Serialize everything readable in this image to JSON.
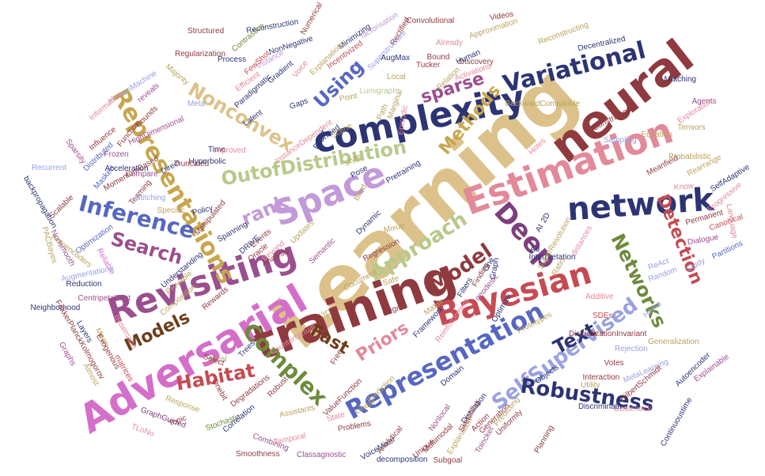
{
  "palette": {
    "maroon": "#8f3a3f",
    "navy": "#2c3474",
    "sand": "#dcc28a",
    "pink": "#e28a9a",
    "purple": "#9b4f8f",
    "olive": "#6e8a3c",
    "blue": "#5767c1",
    "brown": "#6d3d1c",
    "gold": "#c8a64e",
    "orchid": "#d46fc9",
    "sage": "#b8c98b",
    "lilac": "#c39ad9",
    "periwinkle": "#9aa1e0",
    "red": "#c54b52",
    "khaki": "#b9a35f",
    "violet": "#7d3f7d",
    "green": "#6d8a3b"
  },
  "words": [
    {
      "text": "Learning",
      "color": "sand"
    },
    {
      "text": "neural",
      "color": "maroon"
    },
    {
      "text": "training",
      "color": "maroon"
    },
    {
      "text": "complexity",
      "color": "navy"
    },
    {
      "text": "Estimation",
      "color": "pink"
    },
    {
      "text": "Adversarial",
      "color": "orchid"
    },
    {
      "text": "Space",
      "color": "lilac"
    },
    {
      "text": "Revisiting",
      "color": "purple"
    },
    {
      "text": "Representations",
      "color": "gold"
    },
    {
      "text": "Representation",
      "color": "blue"
    },
    {
      "text": "Bayesian",
      "color": "red"
    },
    {
      "text": "network",
      "color": "navy"
    },
    {
      "text": "Variational",
      "color": "navy"
    },
    {
      "text": "SelfSupervised",
      "color": "periwinkle"
    },
    {
      "text": "Robustness",
      "color": "navy"
    },
    {
      "text": "Deep",
      "color": "violet"
    },
    {
      "text": "OutofDistribution",
      "color": "sage"
    },
    {
      "text": "Nonconvex",
      "color": "sand"
    },
    {
      "text": "Inference",
      "color": "blue"
    },
    {
      "text": "Approach",
      "color": "sage"
    },
    {
      "text": "Networks",
      "color": "olive"
    },
    {
      "text": "Detection",
      "color": "red"
    },
    {
      "text": "Methods",
      "color": "gold"
    },
    {
      "text": "Complex",
      "color": "olive"
    },
    {
      "text": "Model",
      "color": "maroon"
    },
    {
      "text": "Priors",
      "color": "pink"
    },
    {
      "text": "Text",
      "color": "navy"
    },
    {
      "text": "Habitat",
      "color": "red"
    },
    {
      "text": "Search",
      "color": "purple"
    },
    {
      "text": "Models",
      "color": "brown"
    },
    {
      "text": "sparse",
      "color": "purple"
    },
    {
      "text": "Using",
      "color": "blue"
    },
    {
      "text": "rank",
      "color": "lilac"
    },
    {
      "text": "Fast",
      "color": "brown"
    },
    {
      "text": "Reconstruction",
      "color": "navy"
    },
    {
      "text": "NonNegative",
      "color": "navy"
    },
    {
      "text": "Structured",
      "color": "maroon"
    },
    {
      "text": "Regularization",
      "color": "maroon"
    },
    {
      "text": "Process",
      "color": "navy"
    },
    {
      "text": "Contrastive",
      "color": "olive"
    },
    {
      "text": "Instance",
      "color": "lilac"
    },
    {
      "text": "Gradient",
      "color": "navy"
    },
    {
      "text": "Efficient",
      "color": "pink"
    },
    {
      "text": "FewShot",
      "color": "red"
    },
    {
      "text": "Paradigmatic",
      "color": "navy"
    },
    {
      "text": "Majority",
      "color": "khaki"
    },
    {
      "text": "HumanMachine",
      "color": "periwinkle"
    },
    {
      "text": "reveals",
      "color": "purple"
    },
    {
      "text": "Information",
      "color": "pink"
    },
    {
      "text": "Influence",
      "color": "maroon"
    },
    {
      "text": "Distributed",
      "color": "blue"
    },
    {
      "text": "Sparsity",
      "color": "purple"
    },
    {
      "text": "Masked",
      "color": "blue"
    },
    {
      "text": "Recurrent",
      "color": "periwinkle"
    },
    {
      "text": "Scalable",
      "color": "maroon"
    },
    {
      "text": "backpropagation",
      "color": "navy"
    },
    {
      "text": "Optimization",
      "color": "blue"
    },
    {
      "text": "Nonsmooth",
      "color": "purple"
    },
    {
      "text": "Autoencoders",
      "color": "khaki"
    },
    {
      "text": "PACBayes",
      "color": "khaki"
    },
    {
      "text": "Reliable",
      "color": "orchid"
    },
    {
      "text": "Augmentations",
      "color": "periwinkle"
    },
    {
      "text": "Reduction",
      "color": "navy"
    },
    {
      "text": "Neighborhood",
      "color": "navy"
    },
    {
      "text": "CentripetalText",
      "color": "purple"
    },
    {
      "text": "FokkerPlanckKolmogorov",
      "color": "maroon"
    },
    {
      "text": "Graphs",
      "color": "purple"
    },
    {
      "text": "Layers",
      "color": "navy"
    },
    {
      "text": "Mean",
      "color": "khaki"
    },
    {
      "text": "Busemann",
      "color": "pink"
    },
    {
      "text": "Exogenous",
      "color": "maroon"
    },
    {
      "text": "matrices",
      "color": "red"
    },
    {
      "text": "Almost",
      "color": "khaki"
    },
    {
      "text": "TLoNo",
      "color": "pink"
    },
    {
      "text": "GraphGuided",
      "color": "violet"
    },
    {
      "text": "Response",
      "color": "khaki"
    },
    {
      "text": "Topic",
      "color": "maroon"
    },
    {
      "text": "Stochastic",
      "color": "olive"
    },
    {
      "text": "Onebit",
      "color": "maroon"
    },
    {
      "text": "Smoothness",
      "color": "maroon"
    },
    {
      "text": "Combining",
      "color": "purple"
    },
    {
      "text": "Classagnostic",
      "color": "purple"
    },
    {
      "text": "decomposition",
      "color": "navy"
    },
    {
      "text": "VoiceMixer",
      "color": "navy"
    },
    {
      "text": "Unique",
      "color": "maroon"
    },
    {
      "text": "Subgoal",
      "color": "maroon"
    },
    {
      "text": "Assistants",
      "color": "khaki"
    },
    {
      "text": "Problems",
      "color": "maroon"
    },
    {
      "text": "Analytical",
      "color": "maroon"
    },
    {
      "text": "Temporal",
      "color": "pink"
    },
    {
      "text": "Correlation",
      "color": "navy"
    },
    {
      "text": "Degradations",
      "color": "maroon"
    },
    {
      "text": "Robust",
      "color": "maroon"
    },
    {
      "text": "ValueFunction",
      "color": "maroon"
    },
    {
      "text": "Prediction",
      "color": "khaki"
    },
    {
      "text": "Linear",
      "color": "khaki"
    },
    {
      "text": "State",
      "color": "pink"
    },
    {
      "text": "Nonlocal",
      "color": "purple"
    },
    {
      "text": "Multimodal",
      "color": "maroon"
    },
    {
      "text": "Explanation",
      "color": "khaki"
    },
    {
      "text": "Toincket",
      "color": "purple"
    },
    {
      "text": "Generation",
      "color": "maroon"
    },
    {
      "text": "Predicting",
      "color": "khaki"
    },
    {
      "text": "Planning",
      "color": "maroon"
    },
    {
      "text": "Bottleneck",
      "color": "pink"
    },
    {
      "text": "Continuoustime",
      "color": "navy"
    },
    {
      "text": "Explainable",
      "color": "purple"
    },
    {
      "text": "Autoencoder",
      "color": "navy"
    },
    {
      "text": "Generalization",
      "color": "khaki"
    },
    {
      "text": "HilbertSchmidt",
      "color": "maroon"
    },
    {
      "text": "MetaLearning",
      "color": "periwinkle"
    },
    {
      "text": "DiscretizationInvariant",
      "color": "maroon"
    },
    {
      "text": "Rejection",
      "color": "periwinkle"
    },
    {
      "text": "Interaction",
      "color": "maroon"
    },
    {
      "text": "Utility",
      "color": "khaki"
    },
    {
      "text": "Objects",
      "color": "navy"
    },
    {
      "text": "Discriminative",
      "color": "navy"
    },
    {
      "text": "Votes",
      "color": "maroon"
    },
    {
      "text": "SDEs",
      "color": "red"
    },
    {
      "text": "Prototypes",
      "color": "khaki"
    },
    {
      "text": "Additive",
      "color": "pink"
    },
    {
      "text": "Home",
      "color": "periwinkle"
    },
    {
      "text": "Random",
      "color": "periwinkle"
    },
    {
      "text": "ReAct",
      "color": "periwinkle"
    },
    {
      "text": "Study",
      "color": "periwinkle"
    },
    {
      "text": "Partitions",
      "color": "blue"
    },
    {
      "text": "Dialogue",
      "color": "purple"
    },
    {
      "text": "Permanent",
      "color": "maroon"
    },
    {
      "text": "Canonical",
      "color": "red"
    },
    {
      "text": "Language",
      "color": "pink"
    },
    {
      "text": "Progressive",
      "color": "pink"
    },
    {
      "text": "Know",
      "color": "pink"
    },
    {
      "text": "Rearrange",
      "color": "khaki"
    },
    {
      "text": "SelfAdaptive",
      "color": "navy"
    },
    {
      "text": "Meanfield",
      "color": "maroon"
    },
    {
      "text": "Probabilistic",
      "color": "khaki"
    },
    {
      "text": "Constrained",
      "color": "maroon"
    },
    {
      "text": "Sampling",
      "color": "periwinkle"
    },
    {
      "text": "Agents",
      "color": "purple"
    },
    {
      "text": "Exploration",
      "color": "pink"
    },
    {
      "text": "Tensors",
      "color": "khaki"
    },
    {
      "text": "Equation",
      "color": "khaki"
    },
    {
      "text": "Matching",
      "color": "navy"
    },
    {
      "text": "Decentralized",
      "color": "navy"
    },
    {
      "text": "Reconstructing",
      "color": "khaki"
    },
    {
      "text": "Approximation",
      "color": "khaki"
    },
    {
      "text": "Videos",
      "color": "maroon"
    },
    {
      "text": "Convolutional",
      "color": "maroon"
    },
    {
      "text": "Discovery",
      "color": "maroon"
    },
    {
      "text": "Already",
      "color": "pink"
    },
    {
      "text": "Bound",
      "color": "maroon"
    },
    {
      "text": "Tucker",
      "color": "maroon"
    },
    {
      "text": "Relation",
      "color": "khaki"
    },
    {
      "text": "Human",
      "color": "navy"
    },
    {
      "text": "Activations",
      "color": "pink"
    },
    {
      "text": "BackwardCompatible",
      "color": "khaki"
    },
    {
      "text": "Holes",
      "color": "pink"
    },
    {
      "text": "Rectified",
      "color": "maroon"
    },
    {
      "text": "factorisation",
      "color": "lilac"
    },
    {
      "text": "Numerical",
      "color": "maroon"
    },
    {
      "text": "Minimizing",
      "color": "navy"
    },
    {
      "text": "Incentivized",
      "color": "red"
    },
    {
      "text": "Superstructure",
      "color": "periwinkle"
    },
    {
      "text": "AugMax",
      "color": "navy"
    },
    {
      "text": "Local",
      "color": "khaki"
    },
    {
      "text": "Explanations",
      "color": "khaki"
    },
    {
      "text": "Voice",
      "color": "pink"
    },
    {
      "text": "Point",
      "color": "khaki"
    },
    {
      "text": "Lumigraph",
      "color": "sage"
    },
    {
      "text": "Path",
      "color": "khaki"
    },
    {
      "text": "Marginal",
      "color": "khaki"
    },
    {
      "text": "Episodic",
      "color": "pink"
    },
    {
      "text": "Bounds",
      "color": "maroon"
    },
    {
      "text": "Meta",
      "color": "periwinkle"
    },
    {
      "text": "HighDimensional",
      "color": "purple"
    },
    {
      "text": "Function",
      "color": "maroon"
    },
    {
      "text": "Frozen",
      "color": "purple"
    },
    {
      "text": "Acceleration",
      "color": "navy"
    },
    {
      "text": "Compare",
      "color": "purple"
    },
    {
      "text": "MomentumBased",
      "color": "maroon"
    },
    {
      "text": "Teaming",
      "color": "maroon"
    },
    {
      "text": "Stitching",
      "color": "periwinkle"
    },
    {
      "text": "Direct",
      "color": "navy"
    },
    {
      "text": "Truncated",
      "color": "maroon"
    },
    {
      "text": "Hyperbolic",
      "color": "navy"
    },
    {
      "text": "Latent",
      "color": "navy"
    },
    {
      "text": "Gaps",
      "color": "navy"
    },
    {
      "text": "InstanceDependent",
      "color": "pink"
    },
    {
      "text": "BAST",
      "color": "navy"
    },
    {
      "text": "Scene",
      "color": "khaki"
    },
    {
      "text": "Unified",
      "color": "navy"
    },
    {
      "text": "Time",
      "color": "navy"
    },
    {
      "text": "Improved",
      "color": "pink"
    },
    {
      "text": "Style",
      "color": "khaki"
    },
    {
      "text": "Pretraining",
      "color": "navy"
    },
    {
      "text": "Pose",
      "color": "navy"
    },
    {
      "text": "Blind",
      "color": "khaki"
    },
    {
      "text": "Specific",
      "color": "khaki"
    },
    {
      "text": "Policy",
      "color": "navy"
    },
    {
      "text": "Manipulated",
      "color": "maroon"
    },
    {
      "text": "Spanning",
      "color": "navy"
    },
    {
      "text": "Events",
      "color": "maroon"
    },
    {
      "text": "DRIVE",
      "color": "navy"
    },
    {
      "text": "Beyond",
      "color": "pink"
    },
    {
      "text": "Updates",
      "color": "khaki"
    },
    {
      "text": "Semantic",
      "color": "purple"
    },
    {
      "text": "Dynamic",
      "color": "navy"
    },
    {
      "text": "Mixup",
      "color": "khaki"
    },
    {
      "text": "Regression",
      "color": "maroon"
    },
    {
      "text": "Safe",
      "color": "khaki"
    },
    {
      "text": "Document",
      "color": "khaki"
    },
    {
      "text": "Analysis",
      "color": "maroon"
    },
    {
      "text": "Oracle",
      "color": "maroon"
    },
    {
      "text": "Understanding",
      "color": "navy"
    },
    {
      "text": "Provable",
      "color": "khaki"
    },
    {
      "text": "Rewards",
      "color": "maroon"
    },
    {
      "text": "Composition",
      "color": "khaki"
    },
    {
      "text": "Regret",
      "color": "maroon"
    },
    {
      "text": "Framework",
      "color": "navy"
    },
    {
      "text": "Matrix",
      "color": "khaki"
    },
    {
      "text": "Reinforcement",
      "color": "pink"
    },
    {
      "text": "Free",
      "color": "maroon"
    },
    {
      "text": "Ideal",
      "color": "khaki"
    },
    {
      "text": "Trees",
      "color": "navy"
    },
    {
      "text": "Counterfactual",
      "color": "pink"
    },
    {
      "text": "Domain",
      "color": "navy"
    },
    {
      "text": "Filters",
      "color": "navy"
    },
    {
      "text": "Graph",
      "color": "navy"
    },
    {
      "text": "geodesic",
      "color": "purple"
    },
    {
      "text": "Optimize",
      "color": "navy"
    },
    {
      "text": "Ratio",
      "color": "khaki"
    },
    {
      "text": "Interpretation",
      "color": "navy"
    },
    {
      "text": "SuperResolution",
      "color": "khaki"
    },
    {
      "text": "distances",
      "color": "pink"
    },
    {
      "text": "Ad",
      "color": "navy"
    },
    {
      "text": "One",
      "color": "navy"
    },
    {
      "text": "Finding",
      "color": "maroon"
    },
    {
      "text": "2D",
      "color": "navy"
    },
    {
      "text": "AI",
      "color": "navy"
    },
    {
      "text": "3D",
      "color": "khaki"
    },
    {
      "text": "Select",
      "color": "maroon"
    },
    {
      "text": "Distillation",
      "color": "navy"
    },
    {
      "text": "Action",
      "color": "maroon"
    },
    {
      "text": "Sketching",
      "color": "maroon"
    },
    {
      "text": "Uniformly",
      "color": "maroon"
    }
  ]
}
